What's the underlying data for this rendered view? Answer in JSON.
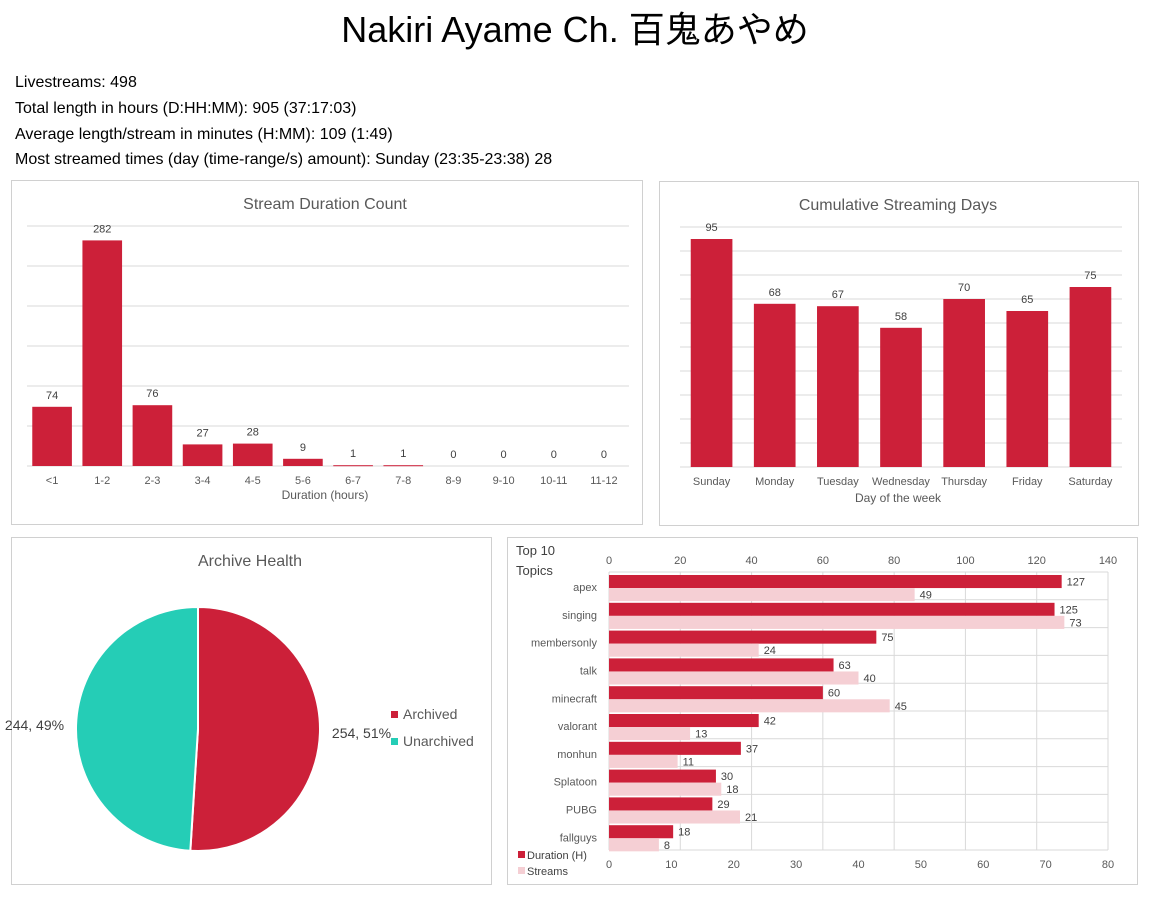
{
  "title": "Nakiri Ayame Ch. 百鬼あやめ",
  "stats": {
    "livestreams": "Livestreams: 498",
    "total_length": "Total length in hours (D:HH:MM): 905 (37:17:03)",
    "average_length": "Average length/stream in minutes (H:MM): 109 (1:49)",
    "most_streamed": "Most streamed times (day (time-range/s) amount): Sunday (23:35-23:38) 28"
  },
  "colors": {
    "bar": "#cc2039",
    "bar_light": "#f5cfd4",
    "teal": "#25cdb6",
    "grid": "#d9d9d9",
    "text": "#595959"
  },
  "chart_data": [
    {
      "id": "duration",
      "type": "bar",
      "title": "Stream Duration Count",
      "xlabel": "Duration (hours)",
      "ylabel": "",
      "categories": [
        "<1",
        "1-2",
        "2-3",
        "3-4",
        "4-5",
        "5-6",
        "6-7",
        "7-8",
        "8-9",
        "9-10",
        "10-11",
        "11-12"
      ],
      "values": [
        74,
        282,
        76,
        27,
        28,
        9,
        1,
        1,
        0,
        0,
        0,
        0
      ],
      "ylim": [
        0,
        300
      ],
      "grid": true,
      "legend": "none"
    },
    {
      "id": "days",
      "type": "bar",
      "title": "Cumulative Streaming Days",
      "xlabel": "Day of the week",
      "ylabel": "",
      "categories": [
        "Sunday",
        "Monday",
        "Tuesday",
        "Wednesday",
        "Thursday",
        "Friday",
        "Saturday"
      ],
      "values": [
        95,
        68,
        67,
        58,
        70,
        65,
        75
      ],
      "ylim": [
        0,
        100
      ],
      "grid": true,
      "legend": "none"
    },
    {
      "id": "archive",
      "type": "pie",
      "title": "Archive Health",
      "slices": [
        {
          "name": "Archived",
          "value": 254,
          "label": "254, 51%",
          "color": "#cc2039"
        },
        {
          "name": "Unarchived",
          "value": 244,
          "label": "244, 49%",
          "color": "#25cdb6"
        }
      ],
      "legend": "right"
    },
    {
      "id": "topics",
      "type": "bar",
      "orientation": "horizontal",
      "title": "Top 10 Topics",
      "categories": [
        "apex",
        "singing",
        "membersonly",
        "talk",
        "minecraft",
        "valorant",
        "monhun",
        "Splatoon",
        "PUBG",
        "fallguys"
      ],
      "series": [
        {
          "name": "Duration (H)",
          "values": [
            127,
            125,
            75,
            63,
            60,
            42,
            37,
            30,
            29,
            18
          ],
          "axis": "top",
          "color": "#cc2039"
        },
        {
          "name": "Streams",
          "values": [
            49,
            73,
            24,
            40,
            45,
            13,
            11,
            18,
            21,
            8
          ],
          "axis": "bottom",
          "color": "#f5cfd4"
        }
      ],
      "top_axis": {
        "range": [
          0,
          140
        ],
        "ticks": [
          "0",
          "20",
          "40",
          "60",
          "80",
          "100",
          "120",
          "140"
        ]
      },
      "bottom_axis": {
        "range": [
          0,
          80
        ],
        "ticks": [
          "0",
          "10",
          "20",
          "30",
          "40",
          "50",
          "60",
          "70",
          "80"
        ]
      },
      "grid": true,
      "legend": "bottom-left"
    }
  ]
}
